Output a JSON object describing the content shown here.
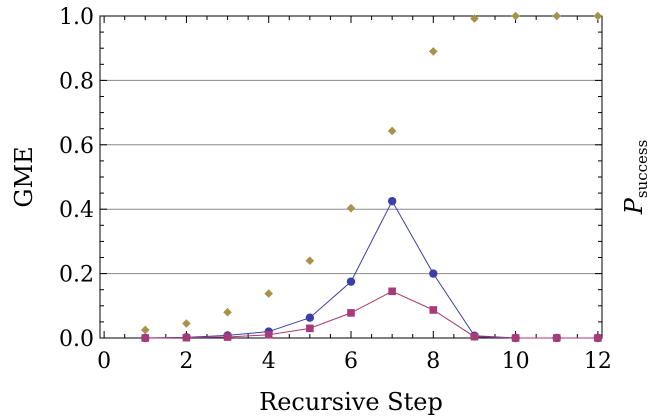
{
  "chart_data": {
    "type": "scatter",
    "xlabel": "Recursive Step",
    "ylabel": "GME",
    "ylabel_right": "P",
    "ylabel_right_sub": "success",
    "xlim": [
      -0.1,
      12.1
    ],
    "ylim": [
      0,
      1.0
    ],
    "x_ticks": [
      0,
      2,
      4,
      6,
      8,
      10,
      12
    ],
    "y_ticks": [
      0.0,
      0.2,
      0.4,
      0.6,
      0.8,
      1.0
    ],
    "y_tick_labels": [
      "0.0",
      "0.2",
      "0.4",
      "0.6",
      "0.8",
      "1.0"
    ],
    "gridlines": "horizontal",
    "colors": {
      "series1": "#3d3fa6",
      "series2": "#a83a77",
      "series3": "#a8924a",
      "grid": "#888888",
      "axis": "#000000"
    },
    "series": [
      {
        "marker": "circle",
        "connected": true,
        "x": [
          1,
          2,
          3,
          4,
          5,
          6,
          7,
          8,
          9,
          10,
          11,
          12
        ],
        "values": [
          0.0,
          0.002,
          0.008,
          0.02,
          0.063,
          0.175,
          0.425,
          0.2,
          0.007,
          0.0,
          0.0,
          0.0
        ]
      },
      {
        "marker": "square",
        "connected": true,
        "x": [
          1,
          2,
          3,
          4,
          5,
          6,
          7,
          8,
          9,
          10,
          11,
          12
        ],
        "values": [
          0.0,
          0.001,
          0.003,
          0.01,
          0.03,
          0.078,
          0.145,
          0.087,
          0.004,
          0.0,
          0.0,
          0.0
        ]
      },
      {
        "marker": "diamond",
        "connected": false,
        "x": [
          1,
          2,
          3,
          4,
          5,
          6,
          7,
          8,
          9,
          10,
          11,
          12
        ],
        "values": [
          0.025,
          0.045,
          0.08,
          0.138,
          0.24,
          0.403,
          0.643,
          0.89,
          0.992,
          1.0,
          1.0,
          1.0
        ]
      }
    ]
  }
}
